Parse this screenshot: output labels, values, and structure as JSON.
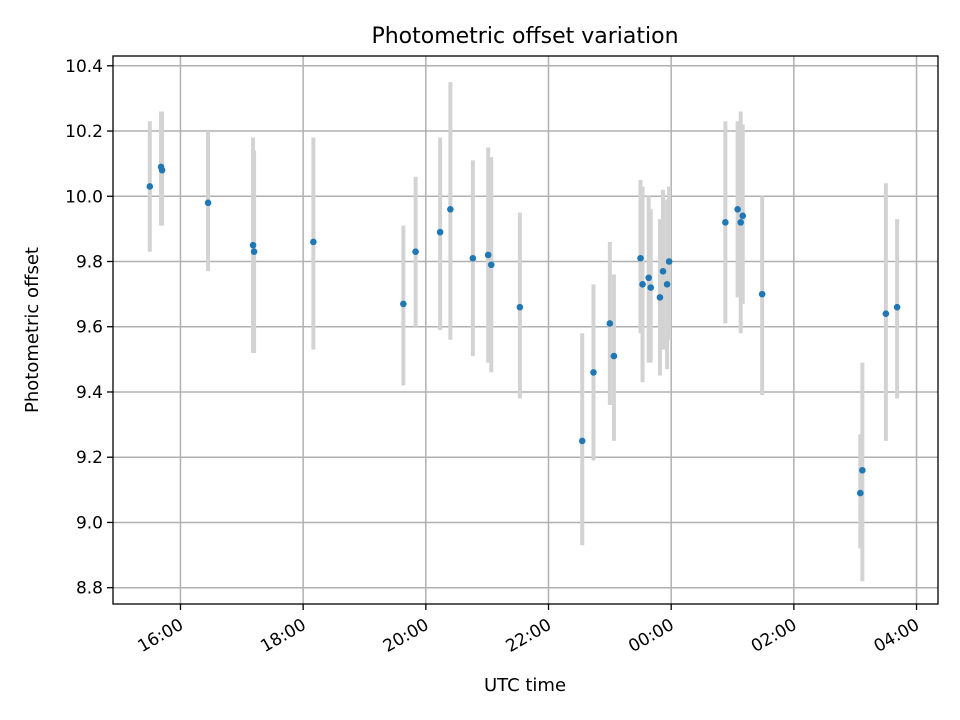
{
  "chart_data": {
    "type": "scatter",
    "title": "Photometric offset variation",
    "xlabel": "UTC time",
    "ylabel": "Photometric offset",
    "ylim": [
      8.75,
      10.43
    ],
    "xlim_hours": [
      14.9,
      28.35
    ],
    "yticks": [
      8.8,
      9.0,
      9.2,
      9.4,
      9.6,
      9.8,
      10.0,
      10.2,
      10.4
    ],
    "ytick_labels": [
      "8.8",
      "9.0",
      "9.2",
      "9.4",
      "9.6",
      "9.8",
      "10.0",
      "10.2",
      "10.4"
    ],
    "xticks": [
      "16:00",
      "18:00",
      "20:00",
      "22:00",
      "00:00",
      "02:00",
      "04:00"
    ],
    "grid": true,
    "error_bar_color": "#d3d3d3",
    "point_color": "#1f77b4",
    "points": [
      {
        "x": "15:30",
        "y": 10.03,
        "err_lo": 9.83,
        "err_hi": 10.23
      },
      {
        "x": "15:41",
        "y": 10.09,
        "err_lo": 9.91,
        "err_hi": 10.26
      },
      {
        "x": "15:42",
        "y": 10.08,
        "err_lo": 9.91,
        "err_hi": 10.26
      },
      {
        "x": "16:27",
        "y": 9.98,
        "err_lo": 9.77,
        "err_hi": 10.2
      },
      {
        "x": "17:11",
        "y": 9.85,
        "err_lo": 9.52,
        "err_hi": 10.18
      },
      {
        "x": "17:12",
        "y": 9.83,
        "err_lo": 9.52,
        "err_hi": 10.14
      },
      {
        "x": "18:10",
        "y": 9.86,
        "err_lo": 9.53,
        "err_hi": 10.18
      },
      {
        "x": "19:38",
        "y": 9.67,
        "err_lo": 9.42,
        "err_hi": 9.91
      },
      {
        "x": "19:50",
        "y": 9.83,
        "err_lo": 9.6,
        "err_hi": 10.06
      },
      {
        "x": "20:14",
        "y": 9.89,
        "err_lo": 9.59,
        "err_hi": 10.18
      },
      {
        "x": "20:24",
        "y": 9.96,
        "err_lo": 9.56,
        "err_hi": 10.35
      },
      {
        "x": "20:46",
        "y": 9.81,
        "err_lo": 9.51,
        "err_hi": 10.11
      },
      {
        "x": "21:01",
        "y": 9.82,
        "err_lo": 9.49,
        "err_hi": 10.15
      },
      {
        "x": "21:04",
        "y": 9.79,
        "err_lo": 9.46,
        "err_hi": 10.12
      },
      {
        "x": "21:32",
        "y": 9.66,
        "err_lo": 9.38,
        "err_hi": 9.95
      },
      {
        "x": "22:33",
        "y": 9.25,
        "err_lo": 8.93,
        "err_hi": 9.58
      },
      {
        "x": "22:44",
        "y": 9.46,
        "err_lo": 9.19,
        "err_hi": 9.73
      },
      {
        "x": "23:00",
        "y": 9.61,
        "err_lo": 9.36,
        "err_hi": 9.86
      },
      {
        "x": "23:04",
        "y": 9.51,
        "err_lo": 9.25,
        "err_hi": 9.76
      },
      {
        "x": "23:30",
        "y": 9.81,
        "err_lo": 9.58,
        "err_hi": 10.05
      },
      {
        "x": "23:32",
        "y": 9.73,
        "err_lo": 9.43,
        "err_hi": 10.03
      },
      {
        "x": "23:38",
        "y": 9.75,
        "err_lo": 9.49,
        "err_hi": 10.0
      },
      {
        "x": "23:40",
        "y": 9.72,
        "err_lo": 9.49,
        "err_hi": 9.96
      },
      {
        "x": "23:49",
        "y": 9.69,
        "err_lo": 9.45,
        "err_hi": 9.93
      },
      {
        "x": "23:52",
        "y": 9.77,
        "err_lo": 9.53,
        "err_hi": 10.02
      },
      {
        "x": "23:56",
        "y": 9.73,
        "err_lo": 9.47,
        "err_hi": 9.99
      },
      {
        "x": "23:58",
        "y": 9.8,
        "err_lo": 9.56,
        "err_hi": 10.03
      },
      {
        "x": "00:53",
        "y": 9.92,
        "err_lo": 9.61,
        "err_hi": 10.23
      },
      {
        "x": "01:05",
        "y": 9.96,
        "err_lo": 9.69,
        "err_hi": 10.23
      },
      {
        "x": "01:08",
        "y": 9.92,
        "err_lo": 9.58,
        "err_hi": 10.26
      },
      {
        "x": "01:10",
        "y": 9.94,
        "err_lo": 9.67,
        "err_hi": 10.22
      },
      {
        "x": "01:29",
        "y": 9.7,
        "err_lo": 9.39,
        "err_hi": 10.0
      },
      {
        "x": "03:05",
        "y": 9.09,
        "err_lo": 8.92,
        "err_hi": 9.27
      },
      {
        "x": "03:07",
        "y": 9.16,
        "err_lo": 8.82,
        "err_hi": 9.49
      },
      {
        "x": "03:30",
        "y": 9.64,
        "err_lo": 9.25,
        "err_hi": 10.04
      },
      {
        "x": "03:41",
        "y": 9.66,
        "err_lo": 9.38,
        "err_hi": 9.93
      }
    ]
  }
}
